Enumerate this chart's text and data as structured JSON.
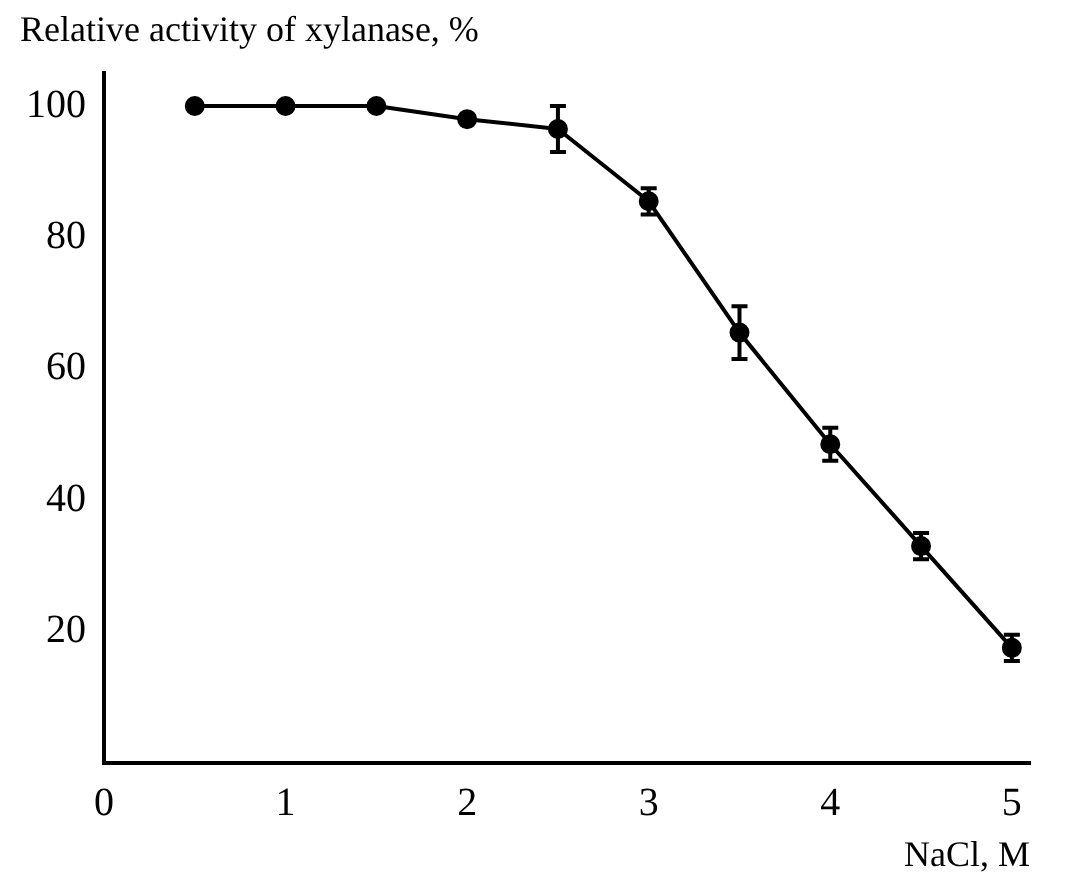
{
  "chart_data": {
    "type": "line",
    "ylabel": "Relative activity of xylanase, %",
    "xlabel": "NaCl, M",
    "x": [
      0.5,
      1,
      1.5,
      2,
      2.5,
      3,
      3.5,
      4,
      4.5,
      5
    ],
    "series": [
      {
        "color": "#000000",
        "values": [
          100,
          100,
          100,
          98,
          96.5,
          85.5,
          65.5,
          48.5,
          33,
          17.5
        ],
        "errors": [
          null,
          null,
          null,
          null,
          3.5,
          2,
          4,
          2.5,
          2,
          2
        ]
      }
    ],
    "xlim": [
      0,
      5.1
    ],
    "xticks": [
      0,
      1,
      2,
      3,
      4,
      5
    ],
    "ylim": [
      0,
      105
    ],
    "yticks": [
      20,
      40,
      60,
      80,
      100
    ],
    "grid": false,
    "legend": false,
    "marker": "circle",
    "line_style": "solid"
  }
}
